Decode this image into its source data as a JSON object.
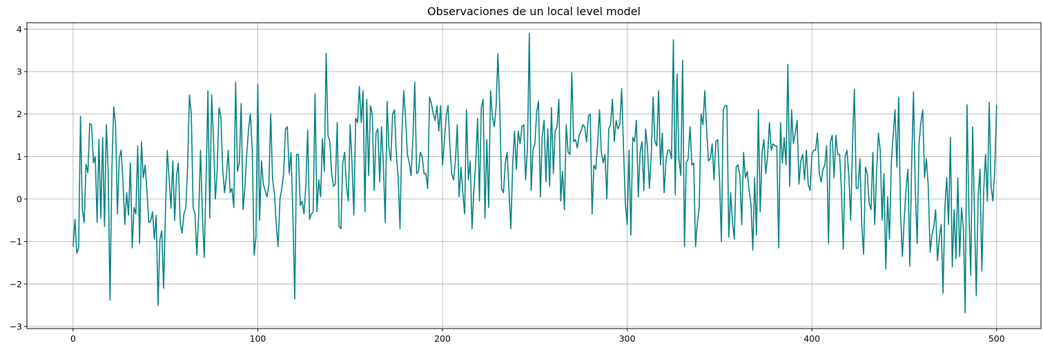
{
  "chart_data": {
    "type": "line",
    "title": "Observaciones de un local level model",
    "xlabel": "",
    "ylabel": "",
    "xlim": [
      -25,
      524
    ],
    "ylim": [
      -3.05,
      4.15
    ],
    "x_ticks": [
      0,
      100,
      200,
      300,
      400,
      500
    ],
    "x_tick_labels": [
      "0",
      "100",
      "200",
      "300",
      "400",
      "500"
    ],
    "y_ticks": [
      -3,
      -2,
      -1,
      0,
      1,
      2,
      3,
      4
    ],
    "y_tick_labels": [
      "−3",
      "−2",
      "−1",
      "0",
      "1",
      "2",
      "3",
      "4"
    ],
    "grid": true,
    "legend": "none",
    "color": "#008080",
    "x": {
      "start": 0,
      "step": 1
    },
    "series": [
      {
        "values": [
          -1.12,
          -0.48,
          -1.28,
          -1.15,
          1.95,
          -0.25,
          -0.55,
          0.82,
          0.62,
          1.78,
          1.75,
          0.85,
          1.0,
          -0.55,
          1.4,
          -0.45,
          1.45,
          -0.65,
          1.75,
          0.65,
          -2.38,
          0.7,
          2.17,
          1.75,
          -0.35,
          0.95,
          1.15,
          0.4,
          -0.6,
          0.15,
          -0.38,
          0.85,
          -1.15,
          -0.2,
          -0.35,
          1.25,
          -1.05,
          1.35,
          0.5,
          0.8,
          0.15,
          -0.55,
          -0.52,
          -0.3,
          -0.95,
          -0.38,
          -2.5,
          -0.95,
          -0.75,
          -2.1,
          -0.3,
          1.15,
          0.5,
          -0.22,
          0.9,
          -0.5,
          0.55,
          0.85,
          -0.55,
          -0.8,
          -0.35,
          -0.22,
          0.75,
          2.45,
          2.0,
          -0.2,
          -0.35,
          -1.32,
          -0.35,
          1.15,
          -0.38,
          -1.38,
          0.45,
          2.55,
          -0.45,
          2.45,
          1.45,
          0.0,
          0.65,
          2.15,
          1.95,
          0.7,
          0.15,
          0.55,
          1.15,
          0.15,
          0.25,
          -0.2,
          2.75,
          0.65,
          0.85,
          2.25,
          -0.25,
          0.25,
          1.05,
          1.65,
          2.0,
          1.15,
          -1.32,
          -0.9,
          2.7,
          -0.5,
          0.9,
          0.35,
          0.2,
          0.05,
          0.35,
          2.0,
          0.45,
          0.15,
          -0.6,
          -1.12,
          0.0,
          0.25,
          0.6,
          1.65,
          1.7,
          0.6,
          1.1,
          -0.38,
          -2.35,
          1.05,
          1.05,
          -0.15,
          -0.05,
          -0.35,
          0.3,
          1.62,
          -0.48,
          -0.35,
          -0.3,
          2.48,
          -0.3,
          0.45,
          0.05,
          1.42,
          0.65,
          3.43,
          1.5,
          1.35,
          0.6,
          0.3,
          0.35,
          1.8,
          -0.65,
          -0.7,
          0.85,
          1.1,
          0.3,
          -0.05,
          1.75,
          0.85,
          -0.38,
          1.9,
          1.8,
          2.65,
          1.8,
          2.55,
          -0.3,
          2.35,
          0.55,
          2.2,
          2.0,
          0.2,
          1.55,
          1.65,
          0.4,
          1.7,
          0.8,
          -0.55,
          2.3,
          1.2,
          0.9,
          2.0,
          2.1,
          1.05,
          0.5,
          -0.7,
          1.5,
          2.55,
          1.9,
          1.05,
          0.85,
          0.55,
          1.45,
          2.75,
          0.6,
          0.65,
          1.1,
          1.0,
          0.6,
          0.6,
          0.25,
          2.4,
          2.25,
          2.0,
          1.85,
          2.2,
          1.6,
          2.2,
          0.8,
          1.35,
          1.95,
          2.2,
          1.25,
          0.6,
          0.45,
          0.9,
          1.75,
          0.05,
          0.75,
          0.15,
          -0.35,
          2.1,
          0.45,
          0.9,
          -0.7,
          0.2,
          0.85,
          1.9,
          -0.05,
          2.15,
          2.35,
          -0.45,
          1.4,
          -0.2,
          2.55,
          1.95,
          1.7,
          2.15,
          3.42,
          2.15,
          0.25,
          0.15,
          0.85,
          1.1,
          0.2,
          -0.7,
          0.8,
          1.6,
          0.7,
          1.6,
          1.3,
          1.7,
          1.75,
          0.45,
          1.2,
          3.9,
          0.2,
          1.15,
          1.3,
          2.05,
          2.3,
          0.05,
          1.5,
          1.85,
          0.4,
          1.65,
          0.3,
          2.15,
          0.6,
          1.6,
          1.7,
          2.35,
          -0.05,
          0.65,
          -0.25,
          1.75,
          1.1,
          1.05,
          2.98,
          1.35,
          1.4,
          1.2,
          1.5,
          1.6,
          1.75,
          1.7,
          1.35,
          1.95,
          2.0,
          -0.35,
          0.8,
          0.7,
          1.3,
          2.1,
          1.1,
          0.85,
          1.05,
          0.0,
          1.65,
          1.75,
          2.35,
          1.35,
          1.85,
          1.65,
          1.75,
          2.6,
          1.2,
          -0.1,
          -0.6,
          1.15,
          -0.85,
          1.45,
          1.35,
          1.85,
          0.05,
          1.1,
          1.35,
          0.2,
          1.65,
          1.2,
          0.25,
          1.0,
          2.4,
          1.35,
          1.25,
          2.55,
          0.8,
          1.55,
          0.15,
          0.9,
          1.15,
          1.15,
          0.95,
          3.75,
          0.1,
          2.95,
          0.95,
          0.55,
          3.27,
          -1.12,
          0.85,
          0.95,
          1.7,
          0.8,
          0.85,
          -1.12,
          -0.55,
          -0.2,
          2.0,
          1.75,
          2.55,
          1.65,
          0.9,
          0.95,
          1.3,
          0.45,
          1.35,
          1.4,
          0.45,
          -1.0,
          2.1,
          2.2,
          2.2,
          -0.9,
          0.15,
          -0.55,
          -0.95,
          0.75,
          0.8,
          0.55,
          -0.6,
          1.1,
          0.5,
          0.65,
          0.2,
          -0.1,
          -1.2,
          0.5,
          -0.85,
          2.1,
          -0.3,
          1.1,
          1.4,
          0.6,
          1.0,
          1.8,
          1.15,
          1.3,
          1.25,
          1.25,
          -1.15,
          1.8,
          0.85,
          1.45,
          0.8,
          3.17,
          0.3,
          2.1,
          1.3,
          1.55,
          1.85,
          0.35,
          0.9,
          1.05,
          0.45,
          1.15,
          0.35,
          0.2,
          1.05,
          1.15,
          1.15,
          1.55,
          0.6,
          0.4,
          0.7,
          0.8,
          1.25,
          -1.05,
          1.35,
          1.5,
          0.5,
          1.5,
          1.05,
          1.05,
          0.2,
          -1.18,
          1.0,
          1.15,
          0.55,
          -0.5,
          1.3,
          2.58,
          0.25,
          0.25,
          0.95,
          -0.6,
          -1.3,
          0.75,
          0.6,
          -0.1,
          -0.25,
          1.1,
          -0.6,
          0.6,
          1.55,
          1.15,
          -0.5,
          0.6,
          -1.65,
          0.05,
          -0.95,
          0.85,
          1.5,
          2.1,
          0.75,
          2.4,
          -0.35,
          -1.35,
          -0.45,
          0.25,
          0.7,
          -1.58,
          0.8,
          2.52,
          0.2,
          -1.05,
          1.3,
          1.8,
          2.1,
          0.5,
          0.95,
          0.3,
          -1.25,
          -0.85,
          -0.65,
          -0.25,
          -1.45,
          -0.9,
          -0.6,
          -2.22,
          -0.2,
          0.5,
          -0.6,
          1.45,
          -1.6,
          -0.25,
          -1.4,
          0.5,
          -1.35,
          -0.2,
          -0.7,
          -2.68,
          2.22,
          -0.3,
          -1.8,
          1.7,
          -0.3,
          -2.28,
          0.05,
          0.7,
          -1.7,
          0.2,
          1.05,
          -0.05,
          2.27,
          0.3,
          -0.05,
          0.7,
          2.22
        ]
      }
    ]
  }
}
